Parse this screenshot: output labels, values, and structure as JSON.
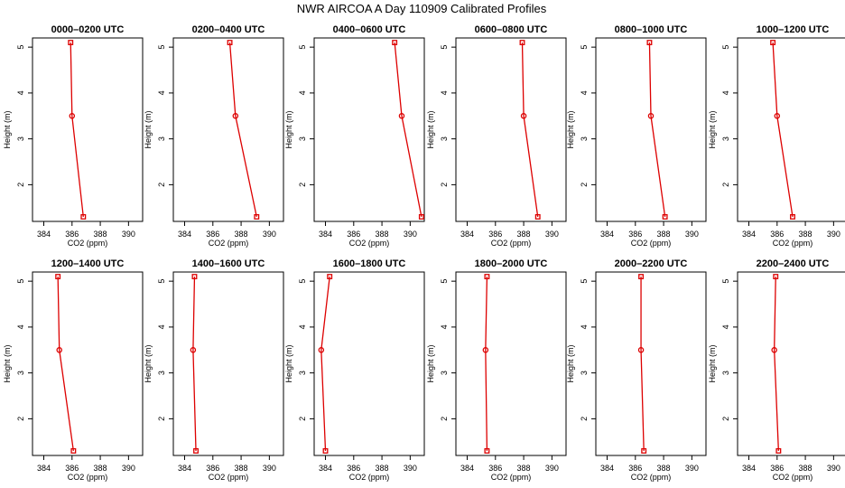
{
  "title": "NWR AIRCOA A  Day 110909  Calibrated Profiles",
  "colors": {
    "line": "#dd0000",
    "frame": "#000000",
    "background": "#ffffff"
  },
  "chart_data": {
    "type": "line",
    "layout": "2x6 grid of small multiples",
    "xlabel": "CO2 (ppm)",
    "ylabel": "Height (m)",
    "xlim": [
      383.2,
      391.0
    ],
    "ylim": [
      1.2,
      5.2
    ],
    "xticks": [
      384,
      386,
      388,
      390
    ],
    "yticks": [
      2,
      3,
      4,
      5
    ],
    "grid": false,
    "panels": [
      {
        "title": "0000–0200 UTC",
        "points": [
          {
            "x": 385.9,
            "y": 5.1
          },
          {
            "x": 386.0,
            "y": 3.5
          },
          {
            "x": 386.8,
            "y": 1.3
          }
        ]
      },
      {
        "title": "0200–0400 UTC",
        "points": [
          {
            "x": 387.2,
            "y": 5.1
          },
          {
            "x": 387.6,
            "y": 3.5
          },
          {
            "x": 389.1,
            "y": 1.3
          }
        ]
      },
      {
        "title": "0400–0600 UTC",
        "points": [
          {
            "x": 388.9,
            "y": 5.1
          },
          {
            "x": 389.4,
            "y": 3.5
          },
          {
            "x": 390.8,
            "y": 1.3
          }
        ]
      },
      {
        "title": "0600–0800 UTC",
        "points": [
          {
            "x": 387.9,
            "y": 5.1
          },
          {
            "x": 388.0,
            "y": 3.5
          },
          {
            "x": 389.0,
            "y": 1.3
          }
        ]
      },
      {
        "title": "0800–1000 UTC",
        "points": [
          {
            "x": 387.0,
            "y": 5.1
          },
          {
            "x": 387.1,
            "y": 3.5
          },
          {
            "x": 388.1,
            "y": 1.3
          }
        ]
      },
      {
        "title": "1000–1200 UTC",
        "points": [
          {
            "x": 385.7,
            "y": 5.1
          },
          {
            "x": 386.0,
            "y": 3.5
          },
          {
            "x": 387.1,
            "y": 1.3
          }
        ]
      },
      {
        "title": "1200–1400 UTC",
        "points": [
          {
            "x": 385.0,
            "y": 5.1
          },
          {
            "x": 385.1,
            "y": 3.5
          },
          {
            "x": 386.1,
            "y": 1.3
          }
        ]
      },
      {
        "title": "1400–1600 UTC",
        "points": [
          {
            "x": 384.7,
            "y": 5.1
          },
          {
            "x": 384.6,
            "y": 3.5
          },
          {
            "x": 384.8,
            "y": 1.3
          }
        ]
      },
      {
        "title": "1600–1800 UTC",
        "points": [
          {
            "x": 384.3,
            "y": 5.1
          },
          {
            "x": 383.7,
            "y": 3.5
          },
          {
            "x": 384.0,
            "y": 1.3
          }
        ]
      },
      {
        "title": "1800–2000 UTC",
        "points": [
          {
            "x": 385.4,
            "y": 5.1
          },
          {
            "x": 385.3,
            "y": 3.5
          },
          {
            "x": 385.4,
            "y": 1.3
          }
        ]
      },
      {
        "title": "2000–2200 UTC",
        "points": [
          {
            "x": 386.4,
            "y": 5.1
          },
          {
            "x": 386.4,
            "y": 3.5
          },
          {
            "x": 386.6,
            "y": 1.3
          }
        ]
      },
      {
        "title": "2200–2400 UTC",
        "points": [
          {
            "x": 385.9,
            "y": 5.1
          },
          {
            "x": 385.8,
            "y": 3.5
          },
          {
            "x": 386.1,
            "y": 1.3
          }
        ]
      }
    ]
  }
}
